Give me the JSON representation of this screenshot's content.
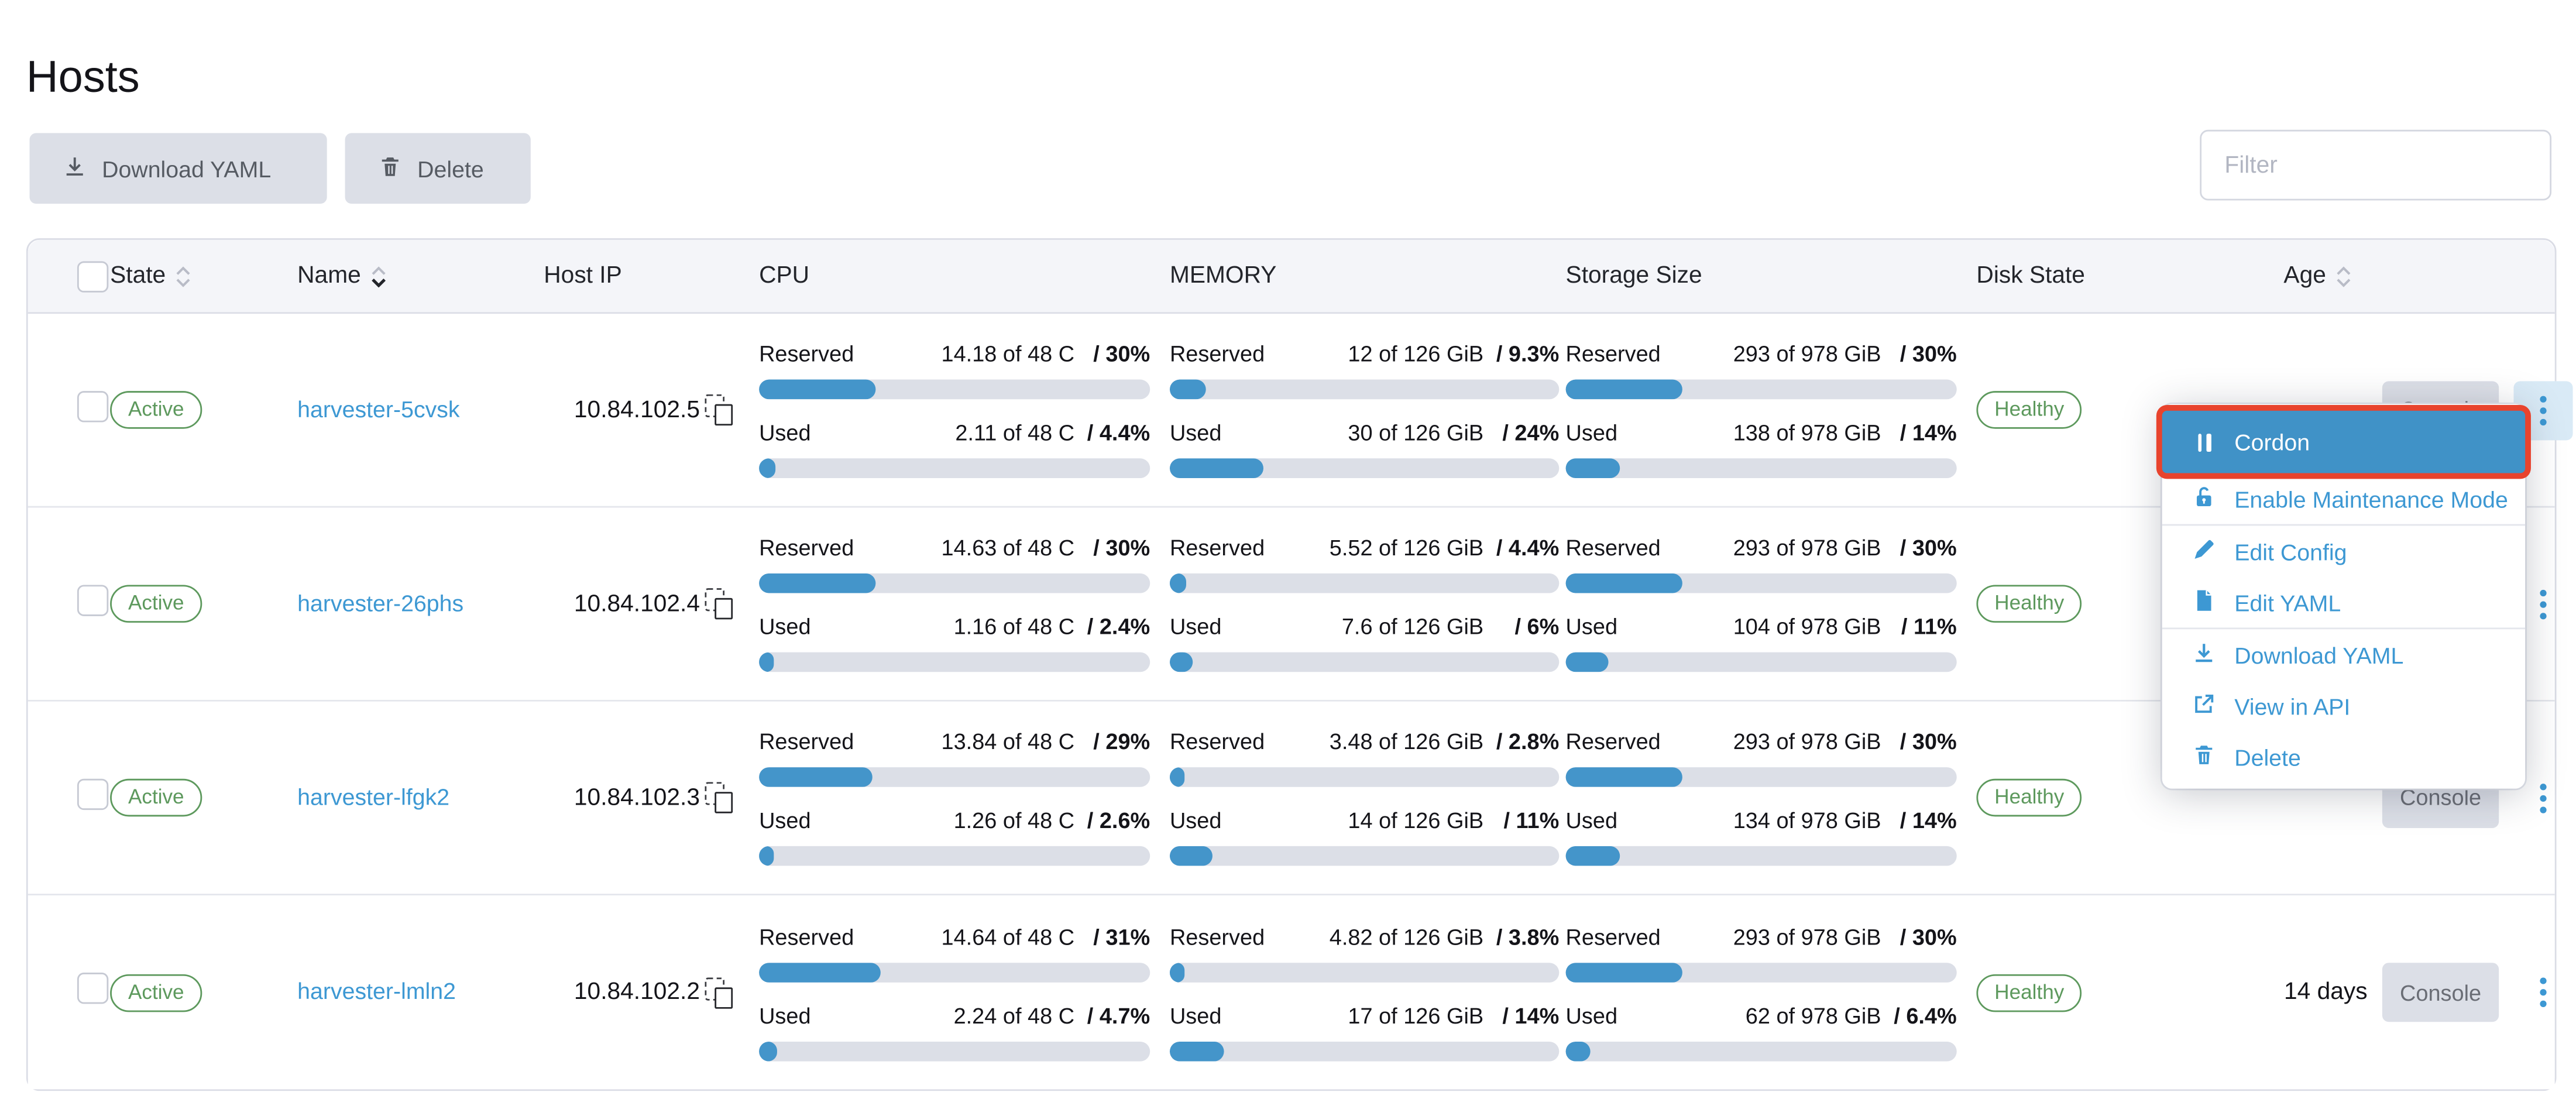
{
  "page": {
    "title": "Hosts"
  },
  "toolbar": {
    "download_yaml_label": "Download YAML",
    "delete_label": "Delete",
    "filter_placeholder": "Filter"
  },
  "table": {
    "headers": {
      "state": "State",
      "name": "Name",
      "host_ip": "Host IP",
      "cpu": "CPU",
      "memory": "MEMORY",
      "storage": "Storage Size",
      "disk_state": "Disk State",
      "age": "Age"
    },
    "metric_labels": {
      "reserved": "Reserved",
      "used": "Used"
    },
    "console_label": "Console",
    "rows": [
      {
        "state": "Active",
        "name": "harvester-5cvsk",
        "host_ip": "10.84.102.5",
        "cpu": {
          "reserved": {
            "value": "14.18 of 48 C",
            "pct": "/ 30%",
            "bar": 30
          },
          "used": {
            "value": "2.11 of 48 C",
            "pct": "/ 4.4%",
            "bar": 4.4
          }
        },
        "memory": {
          "reserved": {
            "value": "12 of 126 GiB",
            "pct": "/ 9.3%",
            "bar": 9.3
          },
          "used": {
            "value": "30 of 126 GiB",
            "pct": "/ 24%",
            "bar": 24
          }
        },
        "storage": {
          "reserved": {
            "value": "293 of 978 GiB",
            "pct": "/ 30%",
            "bar": 30
          },
          "used": {
            "value": "138 of 978 GiB",
            "pct": "/ 14%",
            "bar": 14
          }
        },
        "disk_state": "Healthy",
        "age": "",
        "kebab_active": true
      },
      {
        "state": "Active",
        "name": "harvester-26phs",
        "host_ip": "10.84.102.4",
        "cpu": {
          "reserved": {
            "value": "14.63 of 48 C",
            "pct": "/ 30%",
            "bar": 30
          },
          "used": {
            "value": "1.16 of 48 C",
            "pct": "/ 2.4%",
            "bar": 2.4
          }
        },
        "memory": {
          "reserved": {
            "value": "5.52 of 126 GiB",
            "pct": "/ 4.4%",
            "bar": 4.4
          },
          "used": {
            "value": "7.6 of 126 GiB",
            "pct": "/ 6%",
            "bar": 6
          }
        },
        "storage": {
          "reserved": {
            "value": "293 of 978 GiB",
            "pct": "/ 30%",
            "bar": 30
          },
          "used": {
            "value": "104 of 978 GiB",
            "pct": "/ 11%",
            "bar": 11
          }
        },
        "disk_state": "Healthy",
        "age": "",
        "kebab_active": false
      },
      {
        "state": "Active",
        "name": "harvester-lfgk2",
        "host_ip": "10.84.102.3",
        "cpu": {
          "reserved": {
            "value": "13.84 of 48 C",
            "pct": "/ 29%",
            "bar": 29
          },
          "used": {
            "value": "1.26 of 48 C",
            "pct": "/ 2.6%",
            "bar": 2.6
          }
        },
        "memory": {
          "reserved": {
            "value": "3.48 of 126 GiB",
            "pct": "/ 2.8%",
            "bar": 2.8
          },
          "used": {
            "value": "14 of 126 GiB",
            "pct": "/ 11%",
            "bar": 11
          }
        },
        "storage": {
          "reserved": {
            "value": "293 of 978 GiB",
            "pct": "/ 30%",
            "bar": 30
          },
          "used": {
            "value": "134 of 978 GiB",
            "pct": "/ 14%",
            "bar": 14
          }
        },
        "disk_state": "Healthy",
        "age": "",
        "kebab_active": false
      },
      {
        "state": "Active",
        "name": "harvester-lmln2",
        "host_ip": "10.84.102.2",
        "cpu": {
          "reserved": {
            "value": "14.64 of 48 C",
            "pct": "/ 31%",
            "bar": 31
          },
          "used": {
            "value": "2.24 of 48 C",
            "pct": "/ 4.7%",
            "bar": 4.7
          }
        },
        "memory": {
          "reserved": {
            "value": "4.82 of 126 GiB",
            "pct": "/ 3.8%",
            "bar": 3.8
          },
          "used": {
            "value": "17 of 126 GiB",
            "pct": "/ 14%",
            "bar": 14
          }
        },
        "storage": {
          "reserved": {
            "value": "293 of 978 GiB",
            "pct": "/ 30%",
            "bar": 30
          },
          "used": {
            "value": "62 of 978 GiB",
            "pct": "/ 6.4%",
            "bar": 6.4
          }
        },
        "disk_state": "Healthy",
        "age": "14 days",
        "kebab_active": false
      }
    ]
  },
  "context_menu": {
    "highlighted": "Cordon",
    "items": [
      {
        "label": "Cordon"
      },
      {
        "label": "Enable Maintenance Mode"
      },
      {
        "label": "Edit Config"
      },
      {
        "label": "Edit YAML"
      },
      {
        "label": "Download YAML"
      },
      {
        "label": "View in API"
      },
      {
        "label": "Delete"
      }
    ]
  },
  "colors": {
    "accent_blue": "#3d98d3",
    "bar_fill_blue": "#4495ca",
    "success_green": "#5d995d",
    "annotation_red": "#e8432d"
  }
}
